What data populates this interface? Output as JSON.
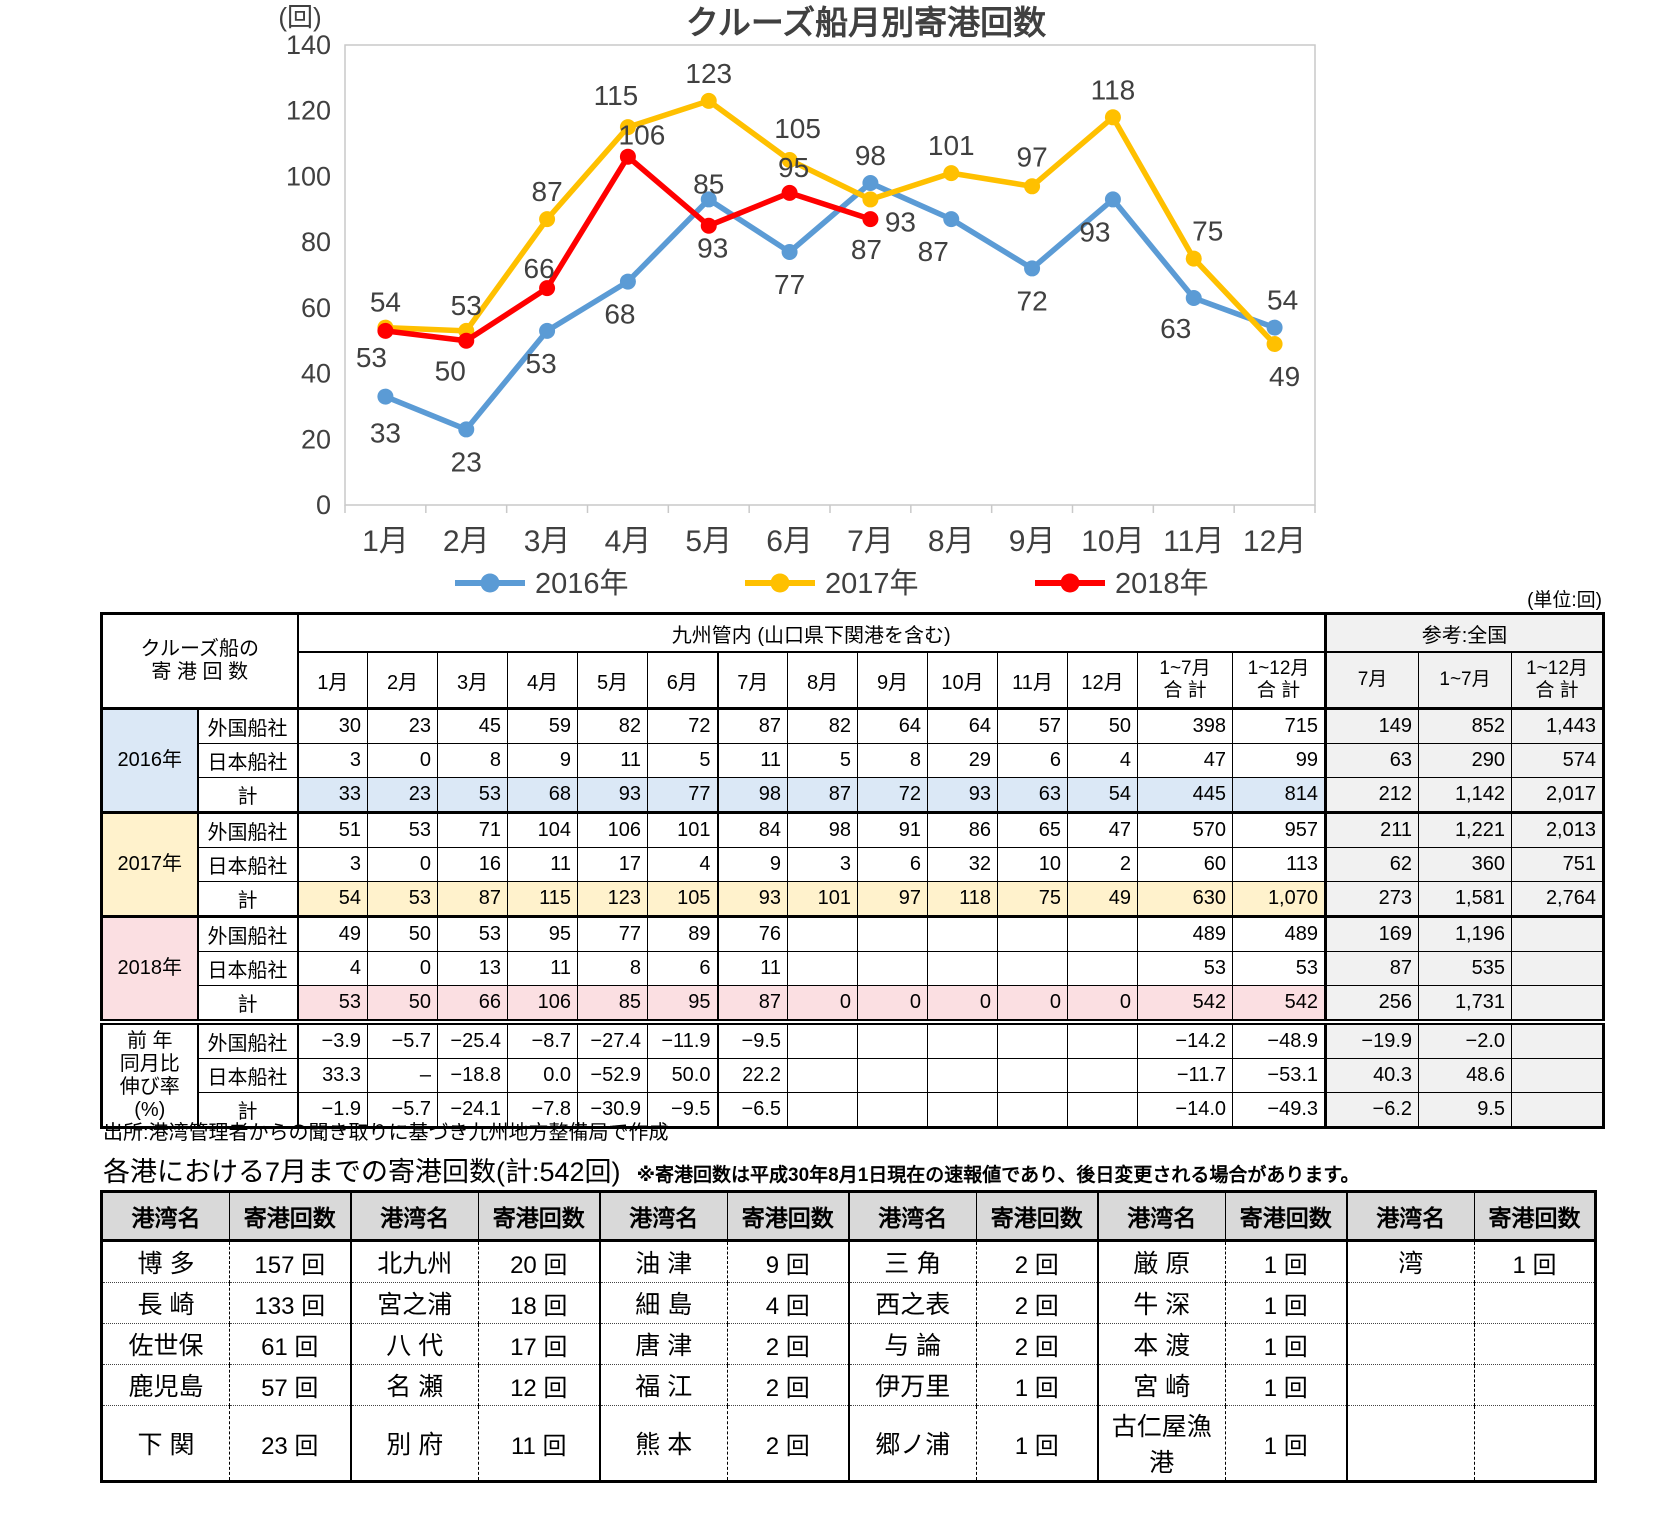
{
  "chart": {
    "chart_data": {
      "type": "line",
      "title": "クルーズ船月別寄港回数",
      "ylabel": "(回)",
      "xlabel": "",
      "ylim": [
        0,
        140
      ],
      "yticks": [
        0,
        20,
        40,
        60,
        80,
        100,
        120,
        140
      ],
      "grid": false,
      "legend_position": "bottom",
      "categories": [
        "1月",
        "2月",
        "3月",
        "4月",
        "5月",
        "6月",
        "7月",
        "8月",
        "9月",
        "10月",
        "11月",
        "12月"
      ],
      "series": [
        {
          "name": "2016年",
          "color": "#5B9BD5",
          "values": [
            33,
            23,
            53,
            68,
            93,
            77,
            98,
            87,
            72,
            93,
            63,
            54
          ]
        },
        {
          "name": "2017年",
          "color": "#FFC000",
          "values": [
            54,
            53,
            87,
            115,
            123,
            105,
            93,
            101,
            97,
            118,
            75,
            49
          ]
        },
        {
          "name": "2018年",
          "color": "#FF0000",
          "values": [
            53,
            50,
            66,
            106,
            85,
            95,
            87
          ]
        }
      ]
    }
  },
  "notes": {
    "unit": "(単位:回)",
    "source": "出所:港湾管理者からの聞き取りに基づき九州地方整備局で作成"
  },
  "main_table": {
    "corner_label": "クルーズ船の\n寄 港 回 数",
    "region_header": "九州管内 (山口県下関港を含む)",
    "reference_header": "参考:全国",
    "month_headers": [
      "1月",
      "2月",
      "3月",
      "4月",
      "5月",
      "6月",
      "7月",
      "8月",
      "9月",
      "10月",
      "11月",
      "12月"
    ],
    "total_headers": [
      "1~7月\n合 計",
      "1~12月\n合 計"
    ],
    "reference_subheaders": [
      "7月",
      "1~7月",
      "1~12月\n合 計"
    ],
    "groups": [
      {
        "year": "2016年",
        "band": "#DBE8F6",
        "rows": [
          {
            "label": "外国船社",
            "total": false,
            "cells": [
              "30",
              "23",
              "45",
              "59",
              "82",
              "72",
              "87",
              "82",
              "64",
              "64",
              "57",
              "50",
              "398",
              "715",
              "149",
              "852",
              "1,443"
            ]
          },
          {
            "label": "日本船社",
            "total": false,
            "cells": [
              "3",
              "0",
              "8",
              "9",
              "11",
              "5",
              "11",
              "5",
              "8",
              "29",
              "6",
              "4",
              "47",
              "99",
              "63",
              "290",
              "574"
            ]
          },
          {
            "label": "計",
            "total": true,
            "cells": [
              "33",
              "23",
              "53",
              "68",
              "93",
              "77",
              "98",
              "87",
              "72",
              "93",
              "63",
              "54",
              "445",
              "814",
              "212",
              "1,142",
              "2,017"
            ]
          }
        ]
      },
      {
        "year": "2017年",
        "band": "#FFF2CC",
        "rows": [
          {
            "label": "外国船社",
            "total": false,
            "cells": [
              "51",
              "53",
              "71",
              "104",
              "106",
              "101",
              "84",
              "98",
              "91",
              "86",
              "65",
              "47",
              "570",
              "957",
              "211",
              "1,221",
              "2,013"
            ]
          },
          {
            "label": "日本船社",
            "total": false,
            "cells": [
              "3",
              "0",
              "16",
              "11",
              "17",
              "4",
              "9",
              "3",
              "6",
              "32",
              "10",
              "2",
              "60",
              "113",
              "62",
              "360",
              "751"
            ]
          },
          {
            "label": "計",
            "total": true,
            "cells": [
              "54",
              "53",
              "87",
              "115",
              "123",
              "105",
              "93",
              "101",
              "97",
              "118",
              "75",
              "49",
              "630",
              "1,070",
              "273",
              "1,581",
              "2,764"
            ]
          }
        ]
      },
      {
        "year": "2018年",
        "band": "#FBDFE2",
        "rows": [
          {
            "label": "外国船社",
            "total": false,
            "cells": [
              "49",
              "50",
              "53",
              "95",
              "77",
              "89",
              "76",
              "",
              "",
              "",
              "",
              "",
              "489",
              "489",
              "169",
              "1,196",
              ""
            ]
          },
          {
            "label": "日本船社",
            "total": false,
            "cells": [
              "4",
              "0",
              "13",
              "11",
              "8",
              "6",
              "11",
              "",
              "",
              "",
              "",
              "",
              "53",
              "53",
              "87",
              "535",
              ""
            ]
          },
          {
            "label": "計",
            "total": true,
            "cells": [
              "53",
              "50",
              "66",
              "106",
              "85",
              "95",
              "87",
              "0",
              "0",
              "0",
              "0",
              "0",
              "542",
              "542",
              "256",
              "1,731",
              ""
            ]
          }
        ]
      },
      {
        "year": "前 年\n同月比\n伸び率\n(%)",
        "band": "#FFFFFF",
        "pct": true,
        "rows": [
          {
            "label": "外国船社",
            "total": false,
            "cells": [
              "−3.9",
              "−5.7",
              "−25.4",
              "−8.7",
              "−27.4",
              "−11.9",
              "−9.5",
              "",
              "",
              "",
              "",
              "",
              "−14.2",
              "−48.9",
              "−19.9",
              "−2.0",
              ""
            ]
          },
          {
            "label": "日本船社",
            "total": false,
            "cells": [
              "33.3",
              "–",
              "−18.8",
              "0.0",
              "−52.9",
              "50.0",
              "22.2",
              "",
              "",
              "",
              "",
              "",
              "−11.7",
              "−53.1",
              "40.3",
              "48.6",
              ""
            ]
          },
          {
            "label": "計",
            "total": false,
            "cells": [
              "−1.9",
              "−5.7",
              "−24.1",
              "−7.8",
              "−30.9",
              "−9.5",
              "−6.5",
              "",
              "",
              "",
              "",
              "",
              "−14.0",
              "−49.3",
              "−6.2",
              "9.5",
              ""
            ]
          }
        ]
      }
    ]
  },
  "ports_section": {
    "title": "各港における7月までの寄港回数(計:542回)",
    "note": "※寄港回数は平成30年8月1日現在の速報値であり、後日変更される場合があります。",
    "name_header": "港湾名",
    "count_header": "寄港回数",
    "pairs": [
      [
        {
          "name": "博 多",
          "count": "157 回"
        },
        {
          "name": "長 崎",
          "count": "133 回"
        },
        {
          "name": "佐世保",
          "count": "61 回"
        },
        {
          "name": "鹿児島",
          "count": "57 回"
        },
        {
          "name": "下 関",
          "count": "23 回"
        }
      ],
      [
        {
          "name": "北九州",
          "count": "20 回"
        },
        {
          "name": "宮之浦",
          "count": "18 回"
        },
        {
          "name": "八 代",
          "count": "17 回"
        },
        {
          "name": "名 瀬",
          "count": "12 回"
        },
        {
          "name": "別 府",
          "count": "11 回"
        }
      ],
      [
        {
          "name": "油 津",
          "count": "9 回"
        },
        {
          "name": "細 島",
          "count": "4 回"
        },
        {
          "name": "唐 津",
          "count": "2 回"
        },
        {
          "name": "福 江",
          "count": "2 回"
        },
        {
          "name": "熊 本",
          "count": "2 回"
        }
      ],
      [
        {
          "name": "三 角",
          "count": "2 回"
        },
        {
          "name": "西之表",
          "count": "2 回"
        },
        {
          "name": "与 論",
          "count": "2 回"
        },
        {
          "name": "伊万里",
          "count": "1 回"
        },
        {
          "name": "郷ノ浦",
          "count": "1 回"
        }
      ],
      [
        {
          "name": "厳 原",
          "count": "1 回"
        },
        {
          "name": "牛 深",
          "count": "1 回"
        },
        {
          "name": "本 渡",
          "count": "1 回"
        },
        {
          "name": "宮 崎",
          "count": "1 回"
        },
        {
          "name": "古仁屋漁港",
          "count": "1 回"
        }
      ],
      [
        {
          "name": "湾",
          "count": "1 回"
        },
        {
          "name": "",
          "count": ""
        },
        {
          "name": "",
          "count": ""
        },
        {
          "name": "",
          "count": ""
        },
        {
          "name": "",
          "count": ""
        }
      ]
    ]
  }
}
